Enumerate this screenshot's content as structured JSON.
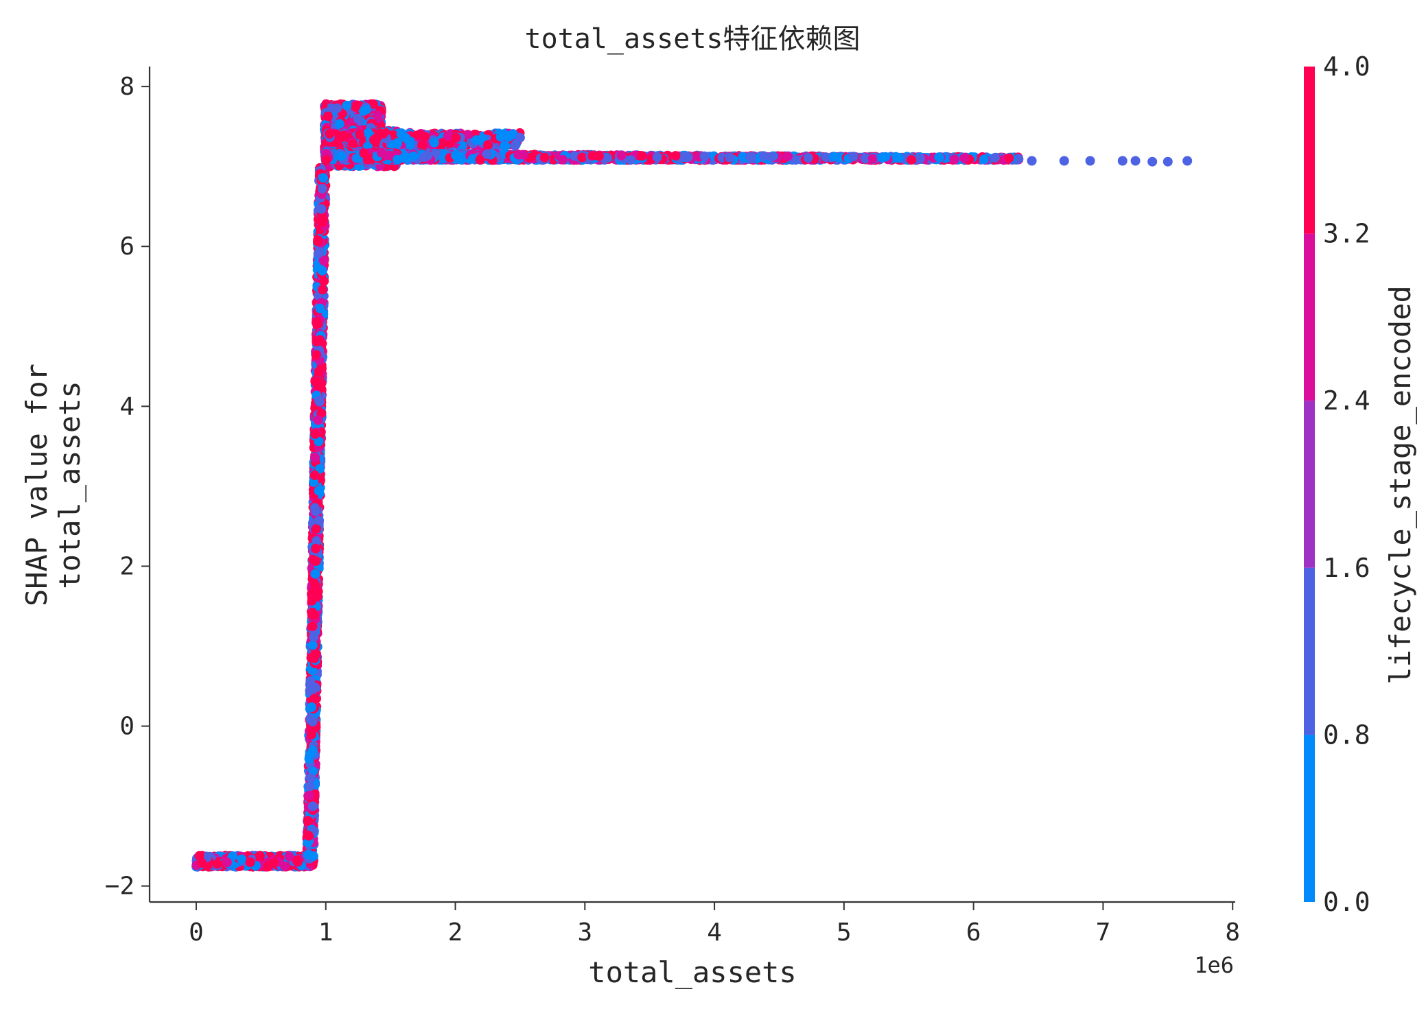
{
  "chart_data": {
    "type": "scatter",
    "title": "total_assets特征依赖图",
    "xlabel": "total_assets",
    "ylabel_line1": "SHAP value for",
    "ylabel_line2": "total_assets",
    "x_offset_label": "1e6",
    "xlim": [
      -360000,
      8020000
    ],
    "ylim": [
      -2.2,
      8.25
    ],
    "xticks": [
      0,
      1,
      2,
      3,
      4,
      5,
      6,
      7,
      8
    ],
    "xtick_labels": [
      "0",
      "1",
      "2",
      "3",
      "4",
      "5",
      "6",
      "7",
      "8"
    ],
    "yticks": [
      -2,
      0,
      2,
      4,
      6,
      8
    ],
    "ytick_labels": [
      "−2",
      "0",
      "2",
      "4",
      "6",
      "8"
    ],
    "spines": "left-bottom",
    "grid": false,
    "colorbar": {
      "label": "lifecycle_stage_encoded",
      "range": [
        0.0,
        4.0
      ],
      "ticks": [
        0.0,
        0.8,
        1.6,
        2.4,
        3.2,
        4.0
      ],
      "tick_labels": [
        "0.0",
        "0.8",
        "1.6",
        "2.4",
        "3.2",
        "4.0"
      ],
      "bands": [
        {
          "from": 0.0,
          "to": 0.8,
          "color": "#008afb"
        },
        {
          "from": 0.8,
          "to": 1.6,
          "color": "#4e62e4"
        },
        {
          "from": 1.6,
          "to": 2.4,
          "color": "#9d32c4"
        },
        {
          "from": 2.4,
          "to": 3.2,
          "color": "#da0e9a"
        },
        {
          "from": 3.2,
          "to": 4.0,
          "color": "#ff0052"
        }
      ]
    },
    "point_groups": [
      {
        "name": "low plateau",
        "x_range": [
          0,
          900000
        ],
        "y_range": [
          -1.76,
          -1.62
        ],
        "color_values": [
          0,
          1,
          2,
          3,
          4
        ]
      },
      {
        "name": "steep rise",
        "x_range": [
          840000,
          1000000
        ],
        "y_range": [
          -1.7,
          7.0
        ],
        "color_values": [
          0,
          1,
          2,
          3,
          4
        ]
      },
      {
        "name": "top cluster",
        "x_range": [
          990000,
          1550000
        ],
        "y_range": [
          7.0,
          7.78
        ],
        "color_values": [
          0,
          1,
          2,
          3,
          4
        ]
      },
      {
        "name": "upper shelf",
        "x_range": [
          1000000,
          2500000
        ],
        "y_range": [
          7.25,
          7.42
        ],
        "color_values": [
          0,
          1,
          2,
          3,
          4
        ]
      },
      {
        "name": "long tail",
        "x_range": [
          1000000,
          7650000
        ],
        "y_range": [
          7.04,
          7.2
        ],
        "color_values": [
          0,
          1,
          2,
          3
        ]
      }
    ],
    "sample_points": [
      {
        "x": 6450000,
        "y": 7.07,
        "c": 1
      },
      {
        "x": 6700000,
        "y": 7.07,
        "c": 1
      },
      {
        "x": 6900000,
        "y": 7.07,
        "c": 1
      },
      {
        "x": 7150000,
        "y": 7.07,
        "c": 1
      },
      {
        "x": 7250000,
        "y": 7.07,
        "c": 1
      },
      {
        "x": 7380000,
        "y": 7.06,
        "c": 1
      },
      {
        "x": 7500000,
        "y": 7.06,
        "c": 1
      },
      {
        "x": 7650000,
        "y": 7.07,
        "c": 1
      },
      {
        "x": 2500000,
        "y": 7.36,
        "c": 1
      },
      {
        "x": 2350000,
        "y": 7.37,
        "c": 0
      }
    ]
  }
}
